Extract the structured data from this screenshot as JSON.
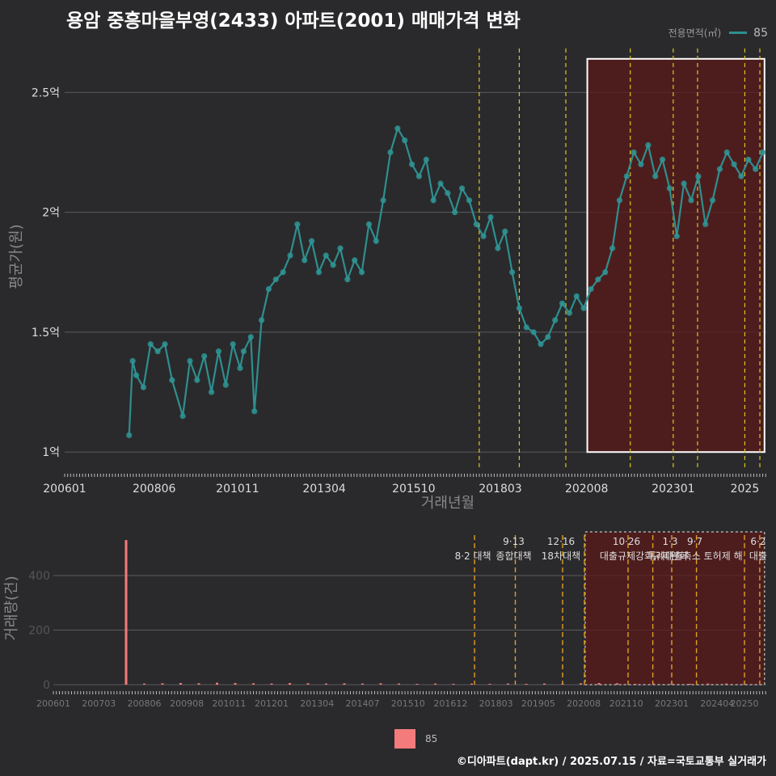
{
  "title": "용암 중흥마을부영(2433) 아파트(2001) 매매가격 변화",
  "legend_top": {
    "label": "전용면적(㎡)",
    "value": "85"
  },
  "legend_bottom": {
    "value": "85"
  },
  "footer": "©디아파트(dapt.kr) / 2025.07.15 / 자료=국토교통부 실거래가",
  "colors": {
    "background": "#2a2a2c",
    "line": "#2f8f8f",
    "point": "#2f9595",
    "bar": "#f47b7b",
    "policy": "#d9c81e",
    "policy_vol": "#e0a020",
    "highlight": "#5a1a1a"
  },
  "chart_data": [
    {
      "type": "line",
      "name": "price",
      "xlabel": "거래년월",
      "ylabel": "평균가(원)",
      "x_range": [
        2006.0,
        2025.6
      ],
      "ylim": [
        0.93,
        2.7
      ],
      "y_ticks": [
        1.0,
        1.5,
        2.0,
        2.5
      ],
      "y_tick_labels": [
        "1억",
        "1.5억",
        "2억",
        "2.5억"
      ],
      "x_ticks": [
        2006.0,
        2008.5,
        2010.83,
        2013.25,
        2015.75,
        2018.17,
        2020.58,
        2023.0,
        2025.0
      ],
      "x_tick_labels": [
        "200601",
        "200806",
        "201011",
        "201304",
        "201510",
        "201803",
        "202008",
        "202301",
        "2025"
      ],
      "series": [
        {
          "name": "85",
          "points": [
            [
              2007.8,
              1.07
            ],
            [
              2007.9,
              1.38
            ],
            [
              2008.0,
              1.32
            ],
            [
              2008.2,
              1.27
            ],
            [
              2008.4,
              1.45
            ],
            [
              2008.6,
              1.42
            ],
            [
              2008.8,
              1.45
            ],
            [
              2009.0,
              1.3
            ],
            [
              2009.3,
              1.15
            ],
            [
              2009.5,
              1.38
            ],
            [
              2009.7,
              1.3
            ],
            [
              2009.9,
              1.4
            ],
            [
              2010.1,
              1.25
            ],
            [
              2010.3,
              1.42
            ],
            [
              2010.5,
              1.28
            ],
            [
              2010.7,
              1.45
            ],
            [
              2010.9,
              1.35
            ],
            [
              2011.0,
              1.42
            ],
            [
              2011.2,
              1.48
            ],
            [
              2011.3,
              1.17
            ],
            [
              2011.5,
              1.55
            ],
            [
              2011.7,
              1.68
            ],
            [
              2011.9,
              1.72
            ],
            [
              2012.1,
              1.75
            ],
            [
              2012.3,
              1.82
            ],
            [
              2012.5,
              1.95
            ],
            [
              2012.7,
              1.8
            ],
            [
              2012.9,
              1.88
            ],
            [
              2013.1,
              1.75
            ],
            [
              2013.3,
              1.82
            ],
            [
              2013.5,
              1.78
            ],
            [
              2013.7,
              1.85
            ],
            [
              2013.9,
              1.72
            ],
            [
              2014.1,
              1.8
            ],
            [
              2014.3,
              1.75
            ],
            [
              2014.5,
              1.95
            ],
            [
              2014.7,
              1.88
            ],
            [
              2014.9,
              2.05
            ],
            [
              2015.1,
              2.25
            ],
            [
              2015.3,
              2.35
            ],
            [
              2015.5,
              2.3
            ],
            [
              2015.7,
              2.2
            ],
            [
              2015.9,
              2.15
            ],
            [
              2016.1,
              2.22
            ],
            [
              2016.3,
              2.05
            ],
            [
              2016.5,
              2.12
            ],
            [
              2016.7,
              2.08
            ],
            [
              2016.9,
              2.0
            ],
            [
              2017.1,
              2.1
            ],
            [
              2017.3,
              2.05
            ],
            [
              2017.5,
              1.95
            ],
            [
              2017.7,
              1.9
            ],
            [
              2017.9,
              1.98
            ],
            [
              2018.1,
              1.85
            ],
            [
              2018.3,
              1.92
            ],
            [
              2018.5,
              1.75
            ],
            [
              2018.7,
              1.6
            ],
            [
              2018.9,
              1.52
            ],
            [
              2019.1,
              1.5
            ],
            [
              2019.3,
              1.45
            ],
            [
              2019.5,
              1.48
            ],
            [
              2019.7,
              1.55
            ],
            [
              2019.9,
              1.62
            ],
            [
              2020.1,
              1.58
            ],
            [
              2020.3,
              1.65
            ],
            [
              2020.5,
              1.6
            ],
            [
              2020.7,
              1.68
            ],
            [
              2020.9,
              1.72
            ],
            [
              2021.1,
              1.75
            ],
            [
              2021.3,
              1.85
            ],
            [
              2021.5,
              2.05
            ],
            [
              2021.7,
              2.15
            ],
            [
              2021.9,
              2.25
            ],
            [
              2022.1,
              2.2
            ],
            [
              2022.3,
              2.28
            ],
            [
              2022.5,
              2.15
            ],
            [
              2022.7,
              2.22
            ],
            [
              2022.9,
              2.1
            ],
            [
              2023.1,
              1.9
            ],
            [
              2023.3,
              2.12
            ],
            [
              2023.5,
              2.05
            ],
            [
              2023.7,
              2.15
            ],
            [
              2023.9,
              1.95
            ],
            [
              2024.1,
              2.05
            ],
            [
              2024.3,
              2.18
            ],
            [
              2024.5,
              2.25
            ],
            [
              2024.7,
              2.2
            ],
            [
              2024.9,
              2.15
            ],
            [
              2025.1,
              2.22
            ],
            [
              2025.3,
              2.18
            ],
            [
              2025.5,
              2.25
            ]
          ]
        }
      ],
      "policy_lines": [
        2017.58,
        2018.7,
        2020.0,
        2021.8,
        2023.0,
        2023.68,
        2025.0,
        2025.42
      ],
      "highlight_range": [
        2020.6,
        2025.55
      ],
      "highlight_y": [
        1.0,
        2.64
      ]
    },
    {
      "type": "bar",
      "name": "volume",
      "ylabel": "거래량(건)",
      "ylim": [
        0,
        560
      ],
      "y_ticks": [
        0,
        200,
        400
      ],
      "y_tick_labels": [
        "0",
        "200",
        "400"
      ],
      "x_range": [
        2006.0,
        2025.6
      ],
      "x_ticks": [
        2006.0,
        2007.25,
        2008.5,
        2009.67,
        2010.83,
        2012.0,
        2013.25,
        2014.5,
        2015.75,
        2016.92,
        2018.17,
        2019.33,
        2020.58,
        2021.75,
        2023.0,
        2024.25,
        2025.0
      ],
      "x_tick_labels": [
        "200601",
        "200703",
        "200806",
        "200908",
        "201011",
        "201201",
        "201304",
        "201407",
        "201510",
        "201612",
        "201803",
        "201905",
        "202008",
        "202110",
        "202301",
        "202404",
        "20250"
      ],
      "series": [
        {
          "name": "85",
          "x": [
            2008.0,
            2008.5,
            2009.0,
            2009.5,
            2010.0,
            2010.5,
            2011.0,
            2011.5,
            2012.0,
            2012.5,
            2013.0,
            2013.5,
            2014.0,
            2014.5,
            2015.0,
            2015.5,
            2016.0,
            2016.5,
            2017.0,
            2017.5,
            2018.0,
            2018.5,
            2019.0,
            2019.5,
            2020.0,
            2020.5,
            2021.0,
            2021.5,
            2022.0,
            2022.5,
            2023.0,
            2023.5,
            2024.0,
            2024.5,
            2025.0
          ],
          "values": [
            530,
            4,
            5,
            6,
            5,
            7,
            6,
            5,
            4,
            6,
            5,
            4,
            5,
            4,
            5,
            4,
            3,
            4,
            3,
            4,
            3,
            4,
            3,
            4,
            4,
            5,
            6,
            5,
            3,
            4,
            4,
            3,
            4,
            4,
            3
          ]
        }
      ],
      "policy_lines": [
        2017.58,
        2018.7,
        2020.0,
        2020.6,
        2021.8,
        2022.48,
        2023.0,
        2023.68,
        2025.0,
        2025.42
      ],
      "highlight_range": [
        2020.62,
        2025.55
      ],
      "annotations": [
        {
          "x": 2017.58,
          "line1": "",
          "line2": "8·2 대책"
        },
        {
          "x": 2018.7,
          "line1": "9·13",
          "line2": "종합대책"
        },
        {
          "x": 2020.0,
          "line1": "12·16",
          "line2": "18차대책"
        },
        {
          "x": 2021.8,
          "line1": "10·26",
          "line2": "대출규제강화"
        },
        {
          "x": 2023.0,
          "line1": "1·3",
          "line2": "규제완화"
        },
        {
          "x": 2023.68,
          "line1": "9·7",
          "line2": "특례대출축소 토허제 해"
        },
        {
          "x": 2025.42,
          "line1": "6·2",
          "line2": "대출"
        }
      ]
    }
  ]
}
